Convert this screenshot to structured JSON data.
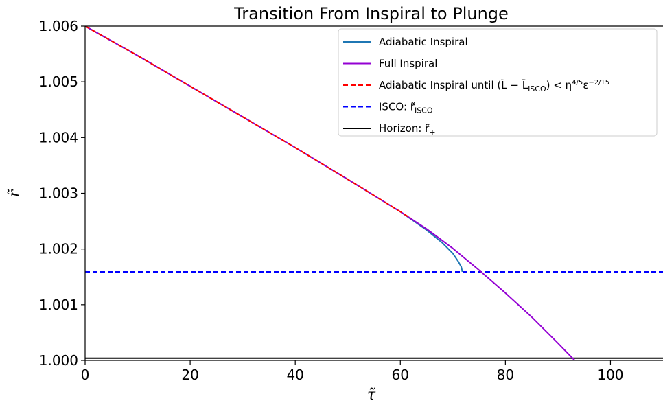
{
  "chart_data": {
    "type": "line",
    "title": "Transition From Inspiral to Plunge",
    "xlabel": "τ̃",
    "ylabel": "r̃",
    "xlim": [
      0,
      110
    ],
    "ylim": [
      1.0,
      1.006
    ],
    "xticks": [
      "0",
      "20",
      "40",
      "60",
      "80",
      "100"
    ],
    "xtick_values": [
      0,
      20,
      40,
      60,
      80,
      100
    ],
    "yticks": [
      "1.000",
      "1.001",
      "1.002",
      "1.003",
      "1.004",
      "1.005",
      "1.006"
    ],
    "ytick_values": [
      1.0,
      1.001,
      1.002,
      1.003,
      1.004,
      1.005,
      1.006
    ],
    "grid": false,
    "legend_position": "top-right",
    "series": [
      {
        "name": "Adiabatic Inspiral",
        "color": "#1f77b4",
        "style": "solid",
        "x": [
          0,
          10,
          20,
          30,
          40,
          50,
          60,
          65,
          68,
          70,
          71,
          71.6,
          71.8
        ],
        "y": [
          1.006,
          1.00547,
          1.00492,
          1.00437,
          1.00382,
          1.00325,
          1.00267,
          1.00234,
          1.00211,
          1.00192,
          1.00178,
          1.00168,
          1.00159
        ]
      },
      {
        "name": "Full Inspiral",
        "color": "#9400d3",
        "style": "solid",
        "x": [
          0,
          10,
          20,
          30,
          40,
          50,
          60,
          65,
          70,
          75,
          80,
          85,
          90,
          93.2
        ],
        "y": [
          1.006,
          1.00547,
          1.00492,
          1.00437,
          1.00382,
          1.00325,
          1.00267,
          1.00236,
          1.00201,
          1.00162,
          1.00121,
          1.00078,
          1.00031,
          1.0
        ]
      },
      {
        "name": "Adiabatic Inspiral until (L̃ − L̃ISCO) < η4/5ε−2/15",
        "color": "#ff0000",
        "style": "dashed",
        "x": [
          0,
          10,
          20,
          30,
          40,
          50,
          60,
          62
        ],
        "y": [
          1.006,
          1.00547,
          1.00492,
          1.00437,
          1.00382,
          1.00325,
          1.00267,
          1.00255
        ]
      },
      {
        "name": "ISCO: r̃ISCO",
        "color": "#0000ff",
        "style": "dashed",
        "x": [
          0,
          110
        ],
        "y": [
          1.00159,
          1.00159
        ]
      },
      {
        "name": "Horizon: r̃+",
        "color": "#000000",
        "style": "solid",
        "x": [
          0,
          110
        ],
        "y": [
          1.00004,
          1.00004
        ]
      }
    ],
    "legend": {
      "entries": [
        {
          "text": "Adiabatic Inspiral",
          "color": "#1f77b4",
          "style": "solid"
        },
        {
          "text": "Full Inspiral",
          "color": "#9400d3",
          "style": "solid"
        },
        {
          "text_main": "Adiabatic Inspiral until (L̃ − L̃",
          "text_sub": "ISCO",
          "text_mid": ") < η",
          "text_sup1": "4/5",
          "text_mid2": "ε",
          "text_sup2": "−2/15",
          "color": "#ff0000",
          "style": "dashed"
        },
        {
          "text_main": "ISCO: r̃",
          "text_sub": "ISCO",
          "color": "#0000ff",
          "style": "dashed"
        },
        {
          "text_main": "Horizon: r̃",
          "text_sub": "+",
          "color": "#000000",
          "style": "solid"
        }
      ]
    }
  }
}
